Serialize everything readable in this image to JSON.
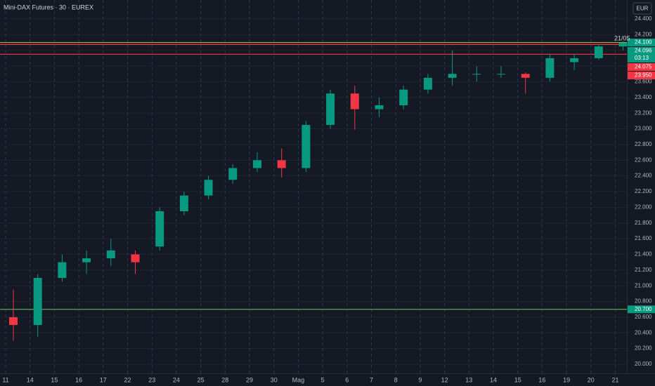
{
  "chart_data": {
    "type": "candlestick",
    "title": "Mini-DAX Futures · 30 · EUREX",
    "currency": "EUR",
    "annotation": "21/05",
    "categories": [
      "11",
      "14",
      "15",
      "16",
      "17",
      "22",
      "23",
      "24",
      "25",
      "28",
      "29",
      "30",
      "Mag",
      "5",
      "6",
      "7",
      "8",
      "9",
      "12",
      "13",
      "14",
      "15",
      "16",
      "19",
      "20",
      "21"
    ],
    "open": [
      20600,
      20500,
      21100,
      21300,
      21350,
      21400,
      21500,
      21950,
      22150,
      22350,
      22500,
      22600,
      22500,
      23050,
      23450,
      23250,
      23300,
      23500,
      23650,
      23700,
      23700,
      23700,
      23650,
      23850,
      23900,
      24050
    ],
    "high": [
      20950,
      21150,
      21400,
      21450,
      21600,
      21450,
      22000,
      22200,
      22400,
      22550,
      22700,
      22750,
      23100,
      23500,
      23550,
      23400,
      23550,
      23700,
      24000,
      23800,
      23800,
      23720,
      23950,
      23950,
      24080,
      24120
    ],
    "low": [
      20300,
      20350,
      21050,
      21150,
      21250,
      21150,
      21450,
      21900,
      22100,
      22300,
      22450,
      22380,
      22450,
      23000,
      22990,
      23150,
      23250,
      23450,
      23550,
      23600,
      23650,
      23450,
      23600,
      23750,
      23880,
      24000
    ],
    "close": [
      20500,
      21100,
      21300,
      21350,
      21450,
      21300,
      21950,
      22150,
      22350,
      22500,
      22600,
      22500,
      23050,
      23450,
      23250,
      23300,
      23500,
      23650,
      23700,
      23700,
      23700,
      23650,
      23900,
      23900,
      24050,
      24096
    ],
    "up_color": "#089981",
    "down_color": "#f23645",
    "ylim": [
      20000,
      24400
    ],
    "yticks": [
      {
        "value": 20000,
        "label": "20.000"
      },
      {
        "value": 20200,
        "label": "20.200"
      },
      {
        "value": 20400,
        "label": "20.400"
      },
      {
        "value": 20600,
        "label": "20.600"
      },
      {
        "value": 20800,
        "label": "20.800"
      },
      {
        "value": 21000,
        "label": "21.000"
      },
      {
        "value": 21200,
        "label": "21.200"
      },
      {
        "value": 21400,
        "label": "21.400"
      },
      {
        "value": 21600,
        "label": "21.600"
      },
      {
        "value": 21800,
        "label": "21.800"
      },
      {
        "value": 22000,
        "label": "22.000"
      },
      {
        "value": 22200,
        "label": "22.200"
      },
      {
        "value": 22400,
        "label": "22.400"
      },
      {
        "value": 22600,
        "label": "22.600"
      },
      {
        "value": 22800,
        "label": "22.800"
      },
      {
        "value": 23000,
        "label": "23.000"
      },
      {
        "value": 23200,
        "label": "23.200"
      },
      {
        "value": 23400,
        "label": "23.400"
      },
      {
        "value": 23600,
        "label": "23.600"
      },
      {
        "value": 23800,
        "label": "23.800"
      },
      {
        "value": 24000,
        "label": "24.000"
      },
      {
        "value": 24200,
        "label": "24.200"
      },
      {
        "value": 24400,
        "label": "24.400"
      }
    ],
    "grid": true,
    "levels": [
      {
        "value": 24100,
        "label": "24.100",
        "color": "#b5a642",
        "label_color": "#089981"
      },
      {
        "value": 24075,
        "label": "24.075",
        "color": "#f23645",
        "label_color": "#f23645"
      },
      {
        "value": 23950,
        "label": "23.950",
        "color": "#f23645",
        "label_color": "#f23645"
      },
      {
        "value": 20700,
        "label": "20.700",
        "color": "#4caf50",
        "label_color": "#089981"
      }
    ],
    "last_price": {
      "value": 24096,
      "label": "24.096",
      "countdown": "03:13",
      "color": "#089981"
    }
  }
}
